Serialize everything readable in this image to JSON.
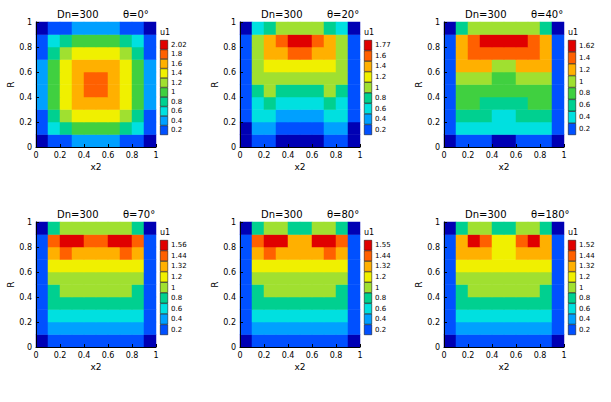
{
  "chart_data": [
    {
      "type": "heatmap",
      "title": "Dn=300",
      "subtitle": "θ=0°",
      "x_label": "x2",
      "y_label": "R",
      "xlim": [
        0,
        1
      ],
      "xticks": [
        0,
        0.2,
        0.4,
        0.6,
        0.8,
        1
      ],
      "ylim": [
        0,
        1
      ],
      "yticks": [
        0,
        0.2,
        0.4,
        0.6,
        0.8,
        1
      ],
      "x": [
        0.05,
        0.15,
        0.25,
        0.35,
        0.45,
        0.55,
        0.65,
        0.75,
        0.85,
        0.95
      ],
      "y": [
        0.05,
        0.15,
        0.25,
        0.35,
        0.45,
        0.55,
        0.65,
        0.75,
        0.85,
        0.95
      ],
      "values": [
        [
          0.1,
          0.25,
          0.35,
          0.4,
          0.42,
          0.42,
          0.4,
          0.35,
          0.25,
          0.1
        ],
        [
          0.25,
          0.6,
          0.85,
          1.0,
          1.05,
          1.05,
          1.0,
          0.85,
          0.6,
          0.25
        ],
        [
          0.35,
          0.85,
          1.2,
          1.4,
          1.48,
          1.48,
          1.4,
          1.2,
          0.85,
          0.35
        ],
        [
          0.4,
          1.0,
          1.4,
          1.65,
          1.78,
          1.78,
          1.65,
          1.4,
          1.0,
          0.4
        ],
        [
          0.42,
          1.05,
          1.48,
          1.78,
          1.98,
          1.98,
          1.78,
          1.48,
          1.05,
          0.42
        ],
        [
          0.42,
          1.05,
          1.48,
          1.78,
          1.98,
          1.98,
          1.78,
          1.48,
          1.05,
          0.42
        ],
        [
          0.4,
          1.0,
          1.4,
          1.65,
          1.78,
          1.78,
          1.65,
          1.4,
          1.0,
          0.4
        ],
        [
          0.35,
          0.85,
          1.2,
          1.4,
          1.48,
          1.48,
          1.4,
          1.2,
          0.85,
          0.35
        ],
        [
          0.25,
          0.6,
          0.85,
          1.0,
          1.05,
          1.05,
          1.0,
          0.85,
          0.6,
          0.25
        ],
        [
          0.1,
          0.25,
          0.35,
          0.4,
          0.42,
          0.42,
          0.4,
          0.35,
          0.25,
          0.1
        ]
      ],
      "colorbar": {
        "label": "u1",
        "ticks": [
          0.2,
          0.4,
          0.6,
          0.8,
          1,
          1.2,
          1.4,
          1.6,
          1.8,
          2.02
        ]
      }
    },
    {
      "type": "heatmap",
      "title": "Dn=300",
      "subtitle": "θ=20°",
      "x_label": "x2",
      "y_label": "R",
      "xlim": [
        0,
        1
      ],
      "xticks": [
        0,
        0.2,
        0.4,
        0.6,
        0.8,
        1
      ],
      "ylim": [
        0,
        1
      ],
      "yticks": [
        0,
        0.2,
        0.4,
        0.6,
        0.8,
        1
      ],
      "x": [
        0.05,
        0.15,
        0.25,
        0.35,
        0.45,
        0.55,
        0.65,
        0.75,
        0.85,
        0.95
      ],
      "y": [
        0.05,
        0.15,
        0.25,
        0.35,
        0.45,
        0.55,
        0.65,
        0.75,
        0.85,
        0.95
      ],
      "values": [
        [
          0.08,
          0.2,
          0.2,
          0.15,
          0.12,
          0.12,
          0.15,
          0.2,
          0.2,
          0.08
        ],
        [
          0.15,
          0.45,
          0.4,
          0.35,
          0.25,
          0.25,
          0.35,
          0.4,
          0.45,
          0.15
        ],
        [
          0.2,
          0.6,
          0.6,
          0.5,
          0.4,
          0.4,
          0.5,
          0.6,
          0.6,
          0.2
        ],
        [
          0.25,
          0.75,
          0.8,
          0.7,
          0.6,
          0.6,
          0.7,
          0.8,
          0.75,
          0.25
        ],
        [
          0.3,
          0.9,
          1.0,
          0.95,
          0.85,
          0.85,
          0.95,
          1.0,
          0.9,
          0.3
        ],
        [
          0.3,
          1.0,
          1.15,
          1.15,
          1.1,
          1.1,
          1.15,
          1.15,
          1.0,
          0.3
        ],
        [
          0.35,
          1.1,
          1.3,
          1.35,
          1.35,
          1.35,
          1.35,
          1.3,
          1.1,
          0.35
        ],
        [
          0.35,
          1.15,
          1.45,
          1.55,
          1.6,
          1.6,
          1.55,
          1.45,
          1.15,
          0.35
        ],
        [
          0.3,
          1.1,
          1.5,
          1.65,
          1.78,
          1.78,
          1.65,
          1.5,
          1.1,
          0.3
        ],
        [
          0.15,
          0.6,
          0.9,
          1.05,
          1.1,
          1.1,
          1.05,
          0.9,
          0.6,
          0.15
        ]
      ],
      "colorbar": {
        "label": "u1",
        "ticks": [
          0.2,
          0.4,
          0.6,
          0.8,
          1,
          1.2,
          1.4,
          1.6,
          1.77
        ]
      }
    },
    {
      "type": "heatmap",
      "title": "Dn=300",
      "subtitle": "θ=40°",
      "x_label": "x2",
      "y_label": "R",
      "xlim": [
        0,
        1
      ],
      "xticks": [
        0,
        0.2,
        0.4,
        0.6,
        0.8,
        1
      ],
      "ylim": [
        0,
        1
      ],
      "yticks": [
        0,
        0.2,
        0.4,
        0.6,
        0.8,
        1
      ],
      "x": [
        0.05,
        0.15,
        0.25,
        0.35,
        0.45,
        0.55,
        0.65,
        0.75,
        0.85,
        0.95
      ],
      "y": [
        0.05,
        0.15,
        0.25,
        0.35,
        0.45,
        0.55,
        0.65,
        0.75,
        0.85,
        0.95
      ],
      "values": [
        [
          0.1,
          0.22,
          0.22,
          0.2,
          0.18,
          0.18,
          0.2,
          0.22,
          0.22,
          0.1
        ],
        [
          0.2,
          0.5,
          0.5,
          0.45,
          0.4,
          0.4,
          0.45,
          0.5,
          0.5,
          0.2
        ],
        [
          0.25,
          0.7,
          0.68,
          0.6,
          0.55,
          0.55,
          0.6,
          0.68,
          0.7,
          0.25
        ],
        [
          0.28,
          0.82,
          0.82,
          0.75,
          0.7,
          0.7,
          0.75,
          0.82,
          0.82,
          0.28
        ],
        [
          0.3,
          0.95,
          0.95,
          0.9,
          0.8,
          0.8,
          0.9,
          0.95,
          0.95,
          0.3
        ],
        [
          0.33,
          1.05,
          1.1,
          1.05,
          0.95,
          0.95,
          1.05,
          1.1,
          1.05,
          0.33
        ],
        [
          0.35,
          1.2,
          1.25,
          1.22,
          1.15,
          1.15,
          1.22,
          1.25,
          1.2,
          0.35
        ],
        [
          0.35,
          1.3,
          1.45,
          1.45,
          1.42,
          1.42,
          1.45,
          1.45,
          1.3,
          0.35
        ],
        [
          0.3,
          1.35,
          1.6,
          1.63,
          1.63,
          1.63,
          1.63,
          1.6,
          1.35,
          0.3
        ],
        [
          0.15,
          0.7,
          1.0,
          1.1,
          1.1,
          1.1,
          1.1,
          1.0,
          0.7,
          0.15
        ]
      ],
      "colorbar": {
        "label": "u1",
        "ticks": [
          0.2,
          0.4,
          0.6,
          0.8,
          1,
          1.2,
          1.4,
          1.62
        ]
      }
    },
    {
      "type": "heatmap",
      "title": "Dn=300",
      "subtitle": "θ=70°",
      "x_label": "x2",
      "y_label": "R",
      "xlim": [
        0,
        1
      ],
      "xticks": [
        0,
        0.2,
        0.4,
        0.6,
        0.8,
        1
      ],
      "ylim": [
        0,
        1
      ],
      "yticks": [
        0,
        0.2,
        0.4,
        0.6,
        0.8,
        1
      ],
      "x": [
        0.05,
        0.15,
        0.25,
        0.35,
        0.45,
        0.55,
        0.65,
        0.75,
        0.85,
        0.95
      ],
      "y": [
        0.05,
        0.15,
        0.25,
        0.35,
        0.45,
        0.55,
        0.65,
        0.75,
        0.85,
        0.95
      ],
      "values": [
        [
          0.1,
          0.22,
          0.25,
          0.25,
          0.25,
          0.25,
          0.25,
          0.25,
          0.22,
          0.1
        ],
        [
          0.2,
          0.48,
          0.52,
          0.52,
          0.52,
          0.52,
          0.52,
          0.52,
          0.48,
          0.2
        ],
        [
          0.25,
          0.65,
          0.72,
          0.72,
          0.72,
          0.72,
          0.72,
          0.72,
          0.65,
          0.25
        ],
        [
          0.28,
          0.82,
          0.9,
          0.9,
          0.9,
          0.9,
          0.9,
          0.9,
          0.82,
          0.28
        ],
        [
          0.3,
          0.95,
          1.02,
          1.03,
          1.03,
          1.03,
          1.03,
          1.02,
          0.95,
          0.3
        ],
        [
          0.33,
          1.1,
          1.18,
          1.18,
          1.18,
          1.18,
          1.18,
          1.18,
          1.1,
          0.33
        ],
        [
          0.35,
          1.25,
          1.3,
          1.3,
          1.28,
          1.28,
          1.3,
          1.3,
          1.25,
          0.35
        ],
        [
          0.35,
          1.38,
          1.45,
          1.42,
          1.36,
          1.36,
          1.42,
          1.45,
          1.38,
          0.35
        ],
        [
          0.3,
          1.45,
          1.58,
          1.58,
          1.45,
          1.45,
          1.58,
          1.58,
          1.45,
          0.3
        ],
        [
          0.15,
          0.8,
          1.05,
          1.1,
          1.0,
          1.0,
          1.1,
          1.05,
          0.8,
          0.15
        ]
      ],
      "colorbar": {
        "label": "u1",
        "ticks": [
          0.2,
          0.4,
          0.6,
          0.8,
          1,
          1.2,
          1.32,
          1.44,
          1.56
        ]
      }
    },
    {
      "type": "heatmap",
      "title": "Dn=300",
      "subtitle": "θ=80°",
      "x_label": "x2",
      "y_label": "R",
      "xlim": [
        0,
        1
      ],
      "xticks": [
        0,
        0.2,
        0.4,
        0.6,
        0.8,
        1
      ],
      "ylim": [
        0,
        1
      ],
      "yticks": [
        0,
        0.2,
        0.4,
        0.6,
        0.8,
        1
      ],
      "x": [
        0.05,
        0.15,
        0.25,
        0.35,
        0.45,
        0.55,
        0.65,
        0.75,
        0.85,
        0.95
      ],
      "y": [
        0.05,
        0.15,
        0.25,
        0.35,
        0.45,
        0.55,
        0.65,
        0.75,
        0.85,
        0.95
      ],
      "values": [
        [
          0.1,
          0.22,
          0.25,
          0.25,
          0.25,
          0.25,
          0.25,
          0.25,
          0.22,
          0.1
        ],
        [
          0.2,
          0.48,
          0.52,
          0.52,
          0.52,
          0.52,
          0.52,
          0.52,
          0.48,
          0.2
        ],
        [
          0.25,
          0.65,
          0.72,
          0.72,
          0.72,
          0.72,
          0.72,
          0.72,
          0.65,
          0.25
        ],
        [
          0.28,
          0.82,
          0.9,
          0.9,
          0.9,
          0.9,
          0.9,
          0.9,
          0.82,
          0.28
        ],
        [
          0.3,
          0.95,
          1.02,
          1.03,
          1.03,
          1.03,
          1.03,
          1.02,
          0.95,
          0.3
        ],
        [
          0.33,
          1.1,
          1.18,
          1.18,
          1.17,
          1.17,
          1.18,
          1.18,
          1.1,
          0.33
        ],
        [
          0.35,
          1.25,
          1.3,
          1.3,
          1.27,
          1.27,
          1.3,
          1.3,
          1.25,
          0.35
        ],
        [
          0.35,
          1.38,
          1.45,
          1.42,
          1.33,
          1.33,
          1.42,
          1.45,
          1.38,
          0.35
        ],
        [
          0.3,
          1.45,
          1.57,
          1.56,
          1.38,
          1.38,
          1.56,
          1.57,
          1.45,
          0.3
        ],
        [
          0.15,
          0.8,
          1.05,
          1.1,
          0.95,
          0.95,
          1.1,
          1.05,
          0.8,
          0.15
        ]
      ],
      "colorbar": {
        "label": "u1",
        "ticks": [
          0.2,
          0.4,
          0.6,
          0.8,
          1,
          1.2,
          1.32,
          1.44,
          1.55
        ]
      }
    },
    {
      "type": "heatmap",
      "title": "Dn=300",
      "subtitle": "θ=180°",
      "x_label": "x2",
      "y_label": "R",
      "xlim": [
        0,
        1
      ],
      "xticks": [
        0,
        0.2,
        0.4,
        0.6,
        0.8,
        1
      ],
      "ylim": [
        0,
        1
      ],
      "yticks": [
        0,
        0.2,
        0.4,
        0.6,
        0.8,
        1
      ],
      "x": [
        0.05,
        0.15,
        0.25,
        0.35,
        0.45,
        0.55,
        0.65,
        0.75,
        0.85,
        0.95
      ],
      "y": [
        0.05,
        0.15,
        0.25,
        0.35,
        0.45,
        0.55,
        0.65,
        0.75,
        0.85,
        0.95
      ],
      "values": [
        [
          0.1,
          0.22,
          0.25,
          0.25,
          0.25,
          0.25,
          0.25,
          0.25,
          0.22,
          0.1
        ],
        [
          0.2,
          0.48,
          0.52,
          0.52,
          0.52,
          0.52,
          0.52,
          0.52,
          0.48,
          0.2
        ],
        [
          0.25,
          0.65,
          0.72,
          0.72,
          0.72,
          0.72,
          0.72,
          0.72,
          0.65,
          0.25
        ],
        [
          0.28,
          0.82,
          0.9,
          0.9,
          0.9,
          0.9,
          0.9,
          0.9,
          0.82,
          0.28
        ],
        [
          0.3,
          0.95,
          1.02,
          1.03,
          1.03,
          1.03,
          1.03,
          1.02,
          0.95,
          0.3
        ],
        [
          0.33,
          1.1,
          1.18,
          1.18,
          1.18,
          1.18,
          1.18,
          1.18,
          1.1,
          0.33
        ],
        [
          0.35,
          1.25,
          1.3,
          1.3,
          1.26,
          1.26,
          1.3,
          1.3,
          1.25,
          0.35
        ],
        [
          0.35,
          1.36,
          1.42,
          1.38,
          1.25,
          1.25,
          1.38,
          1.42,
          1.36,
          0.35
        ],
        [
          0.3,
          1.42,
          1.53,
          1.5,
          1.25,
          1.25,
          1.5,
          1.53,
          1.42,
          0.3
        ],
        [
          0.15,
          0.8,
          1.0,
          1.05,
          0.9,
          0.9,
          1.05,
          1.0,
          0.8,
          0.15
        ]
      ],
      "colorbar": {
        "label": "u1",
        "ticks": [
          0.2,
          0.4,
          0.6,
          0.8,
          1,
          1.2,
          1.32,
          1.44,
          1.52
        ]
      }
    }
  ]
}
